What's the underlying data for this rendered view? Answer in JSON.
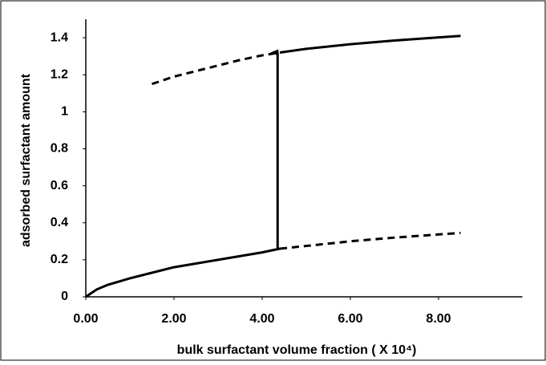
{
  "chart_data": {
    "type": "line",
    "xlabel": "bulk surfactant volume fraction ( X 10⁴)",
    "ylabel": "adsorbed surfactant amount",
    "xlim": [
      0,
      9.9
    ],
    "ylim": [
      0,
      1.5
    ],
    "xticks": [
      {
        "value": 0,
        "label": "0.00"
      },
      {
        "value": 2,
        "label": "2.00"
      },
      {
        "value": 4,
        "label": "4.00"
      },
      {
        "value": 6,
        "label": "6.00"
      },
      {
        "value": 8,
        "label": "8.00"
      }
    ],
    "yticks": [
      0,
      0.2,
      0.4,
      0.6,
      0.8,
      1,
      1.2,
      1.4
    ],
    "grid": false,
    "series": [
      {
        "color": "#000000",
        "style": "solid",
        "x": [
          0,
          0.25,
          0.5,
          1,
          1.5,
          2,
          2.5,
          3,
          3.5,
          4,
          4.4
        ],
        "values": [
          0,
          0.04,
          0.065,
          0.1,
          0.13,
          0.16,
          0.18,
          0.2,
          0.22,
          0.24,
          0.26
        ]
      },
      {
        "color": "#000000",
        "style": "dashed",
        "x": [
          4.4,
          5,
          6,
          7,
          8,
          8.5
        ],
        "values": [
          0.26,
          0.275,
          0.3,
          0.32,
          0.337,
          0.345
        ]
      },
      {
        "color": "#000000",
        "style": "dashed",
        "x": [
          1.5,
          2,
          2.5,
          3,
          3.5,
          4,
          4.4
        ],
        "values": [
          1.15,
          1.19,
          1.22,
          1.25,
          1.28,
          1.305,
          1.32
        ]
      },
      {
        "color": "#000000",
        "style": "solid",
        "x": [
          4.4,
          5,
          6,
          7,
          8,
          8.5
        ],
        "values": [
          1.32,
          1.34,
          1.365,
          1.385,
          1.402,
          1.41
        ]
      }
    ],
    "arrow": {
      "x": 4.35,
      "y": [
        0.26,
        1.32
      ],
      "color": "#000000"
    }
  }
}
